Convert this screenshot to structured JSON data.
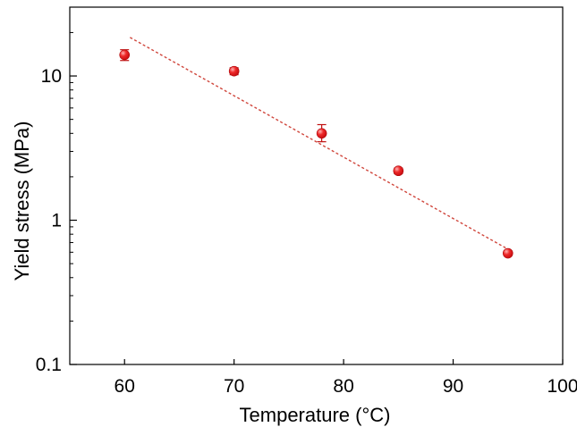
{
  "chart_data": {
    "type": "scatter",
    "title": "",
    "xlabel": "Temperature (°C)",
    "ylabel": "Yield stress (MPa)",
    "xlim": [
      55,
      100
    ],
    "ylim": [
      0.1,
      30
    ],
    "yscale": "log",
    "grid": false,
    "x_ticks": [
      60,
      70,
      80,
      90,
      100
    ],
    "x_tick_labels": [
      "60",
      "70",
      "80",
      "90",
      "100"
    ],
    "y_ticks": [
      0.1,
      1,
      10
    ],
    "y_tick_labels": [
      "0.1",
      "1",
      "10"
    ],
    "series": [
      {
        "marker_color": "#e8141c",
        "points": [
          {
            "x": 60,
            "y": 14.0,
            "err_low": 12.8,
            "err_high": 15.2
          },
          {
            "x": 70,
            "y": 10.8,
            "err_low": 10.2,
            "err_high": 11.4
          },
          {
            "x": 78,
            "y": 4.0,
            "err_low": 3.5,
            "err_high": 4.6
          },
          {
            "x": 85,
            "y": 2.2,
            "err_low": 2.1,
            "err_high": 2.3
          },
          {
            "x": 95,
            "y": 0.59,
            "err_low": 0.57,
            "err_high": 0.61
          }
        ]
      }
    ],
    "fit_line": {
      "style": "dashed",
      "color": "#d0463c",
      "x": [
        60.5,
        95
      ],
      "y": [
        18.5,
        0.63
      ]
    }
  }
}
